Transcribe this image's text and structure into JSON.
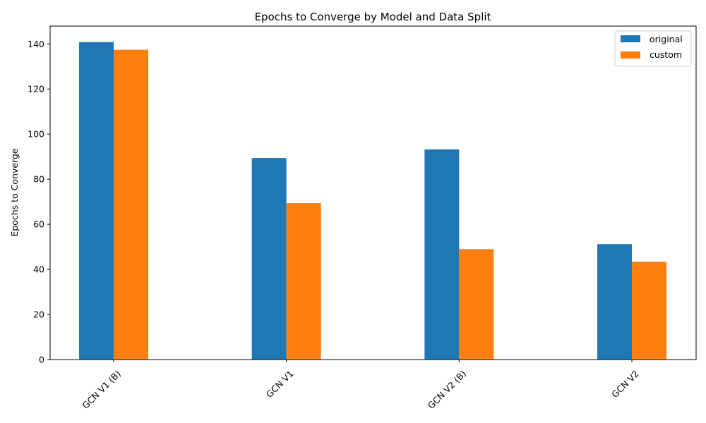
{
  "chart_data": {
    "type": "bar",
    "title": "Epochs to Converge by Model and Data Split",
    "xlabel": "",
    "ylabel": "Epochs to Converge",
    "categories": [
      "GCN V1 (B)",
      "GCN V1",
      "GCN V2 (B)",
      "GCN V2"
    ],
    "series": [
      {
        "name": "original",
        "color": "#1f77b4",
        "values": [
          140.8,
          89.4,
          93.2,
          51.2
        ]
      },
      {
        "name": "custom",
        "color": "#ff7f0e",
        "values": [
          137.4,
          69.4,
          49.0,
          43.4
        ]
      }
    ],
    "ylim": [
      0,
      147.9
    ],
    "yticks": [
      0,
      20,
      40,
      60,
      80,
      100,
      120,
      140
    ],
    "grid": false,
    "legend_position": "top-right"
  }
}
